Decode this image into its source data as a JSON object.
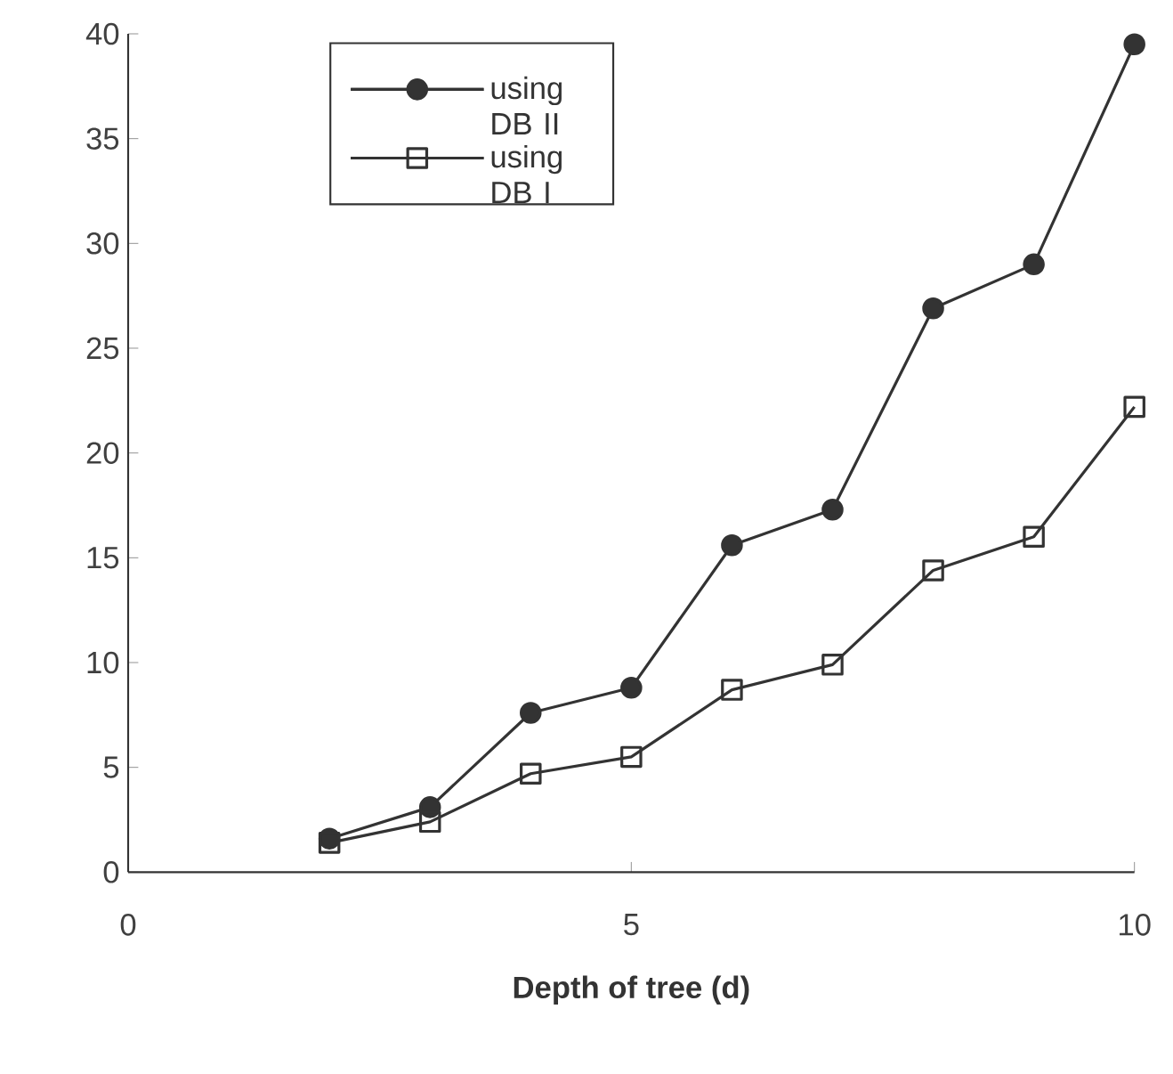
{
  "chart_data": {
    "type": "line",
    "xlabel": "Depth of tree (d)",
    "x": [
      2,
      3,
      4,
      5,
      6,
      7,
      8,
      9,
      10
    ],
    "series": [
      {
        "name": "using DB II",
        "color": "#333333",
        "marker": "circle",
        "values": [
          1.6,
          3.1,
          7.6,
          8.8,
          15.6,
          17.3,
          26.9,
          29.0,
          39.5
        ]
      },
      {
        "name": "using DB I",
        "color": "#333333",
        "marker": "square",
        "values": [
          1.4,
          2.4,
          4.7,
          5.5,
          8.7,
          9.9,
          14.4,
          16.0,
          22.2
        ]
      }
    ],
    "xlim": [
      0,
      10
    ],
    "ylim": [
      0,
      40
    ],
    "xticks": [
      0,
      5,
      10
    ],
    "yticks": [
      0,
      5,
      10,
      15,
      20,
      25,
      30,
      35,
      40
    ],
    "grid": false,
    "legend": "top left",
    "line_style": "solid"
  }
}
